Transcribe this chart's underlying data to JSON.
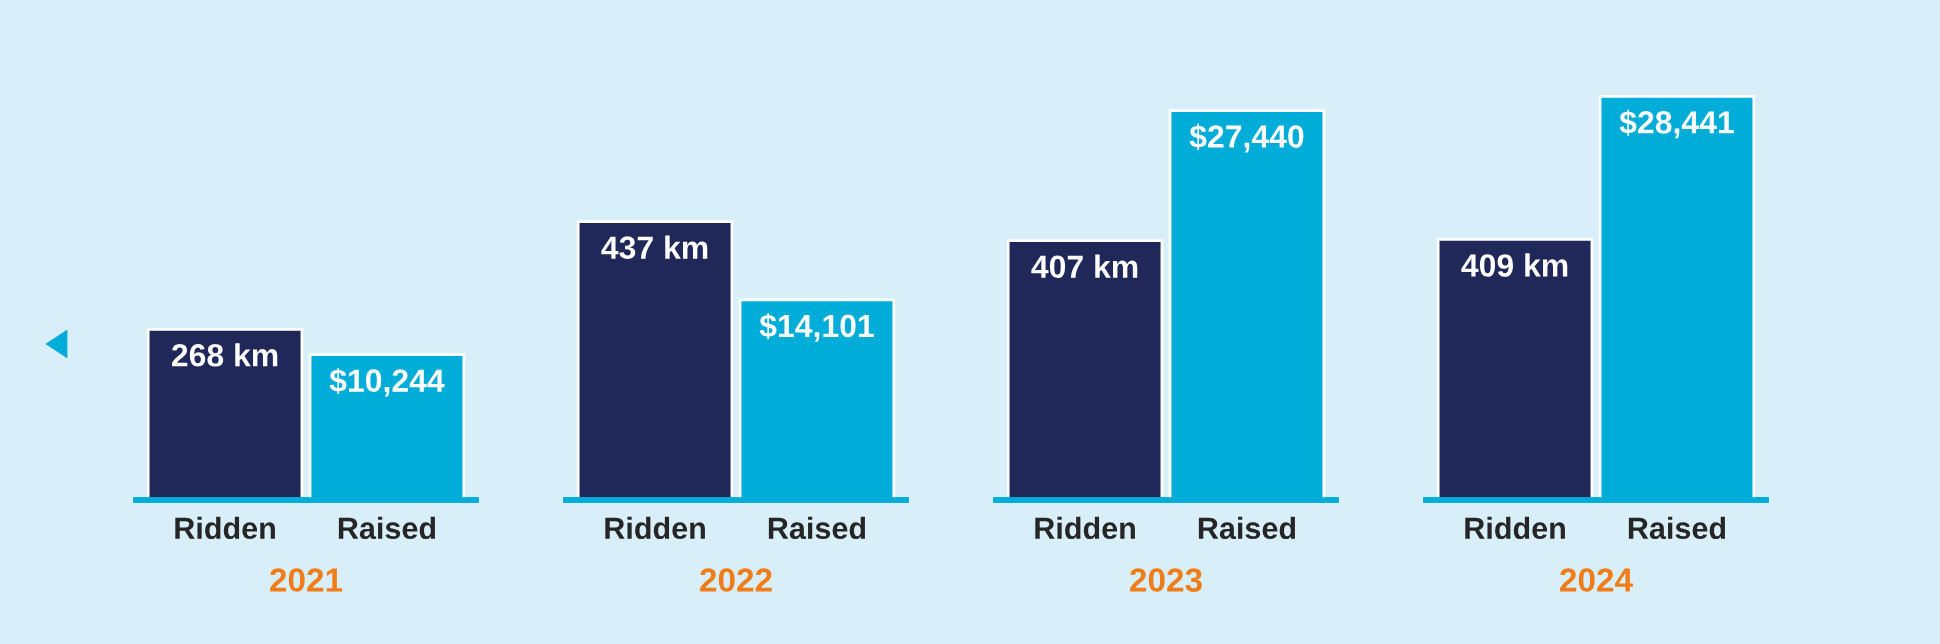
{
  "chart_data": [
    {
      "type": "bar",
      "categories": [
        "Ridden",
        "Raised"
      ],
      "xlabel": "2021",
      "tick_labels": "x",
      "series": [
        {
          "color": "#20285a",
          "values": [
            268,
            null
          ],
          "value_labels": [
            "268 km",
            null
          ]
        },
        {
          "color": "#00acd8",
          "axis": "y2",
          "values": [
            null,
            10244
          ],
          "value_labels": [
            null,
            "$10,244"
          ]
        }
      ]
    },
    {
      "type": "bar",
      "categories": [
        "Ridden",
        "Raised"
      ],
      "xlabel": "2022",
      "tick_labels": "x",
      "series": [
        {
          "color": "#20285a",
          "values": [
            437,
            null
          ],
          "value_labels": [
            "437 km",
            null
          ]
        },
        {
          "color": "#00acd8",
          "axis": "y2",
          "values": [
            null,
            14101
          ],
          "value_labels": [
            null,
            "$14,101"
          ]
        }
      ]
    },
    {
      "type": "bar",
      "categories": [
        "Ridden",
        "Raised"
      ],
      "xlabel": "2023",
      "tick_labels": "x",
      "series": [
        {
          "color": "#20285a",
          "values": [
            407,
            null
          ],
          "value_labels": [
            "407 km",
            null
          ]
        },
        {
          "color": "#00acd8",
          "axis": "y2",
          "values": [
            null,
            27440
          ],
          "value_labels": [
            null,
            "$27,440"
          ]
        }
      ]
    },
    {
      "type": "bar",
      "categories": [
        "Ridden",
        "Raised"
      ],
      "xlabel": "2024",
      "tick_labels": "x",
      "series": [
        {
          "color": "#20285a",
          "values": [
            409,
            null
          ],
          "value_labels": [
            "409 km",
            null
          ]
        },
        {
          "color": "#00acd8",
          "axis": "y2",
          "values": [
            null,
            28441
          ],
          "value_labels": [
            null,
            "$28,441"
          ]
        }
      ]
    }
  ]
}
